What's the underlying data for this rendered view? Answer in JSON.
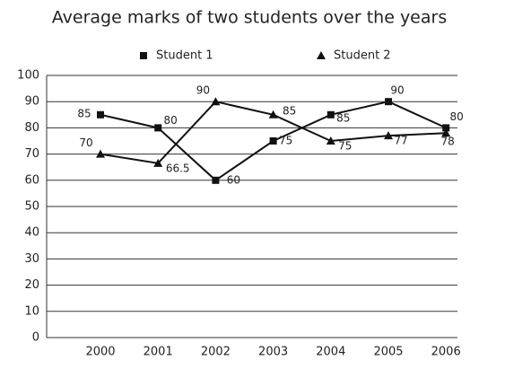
{
  "chart_data": {
    "type": "line",
    "title": "Average marks of two students over the years",
    "categories": [
      "2000",
      "2001",
      "2002",
      "2003",
      "2004",
      "2005",
      "2006"
    ],
    "series": [
      {
        "name": "Student 1",
        "color": "#111111",
        "marker": "square",
        "values": [
          85,
          80,
          60,
          75,
          85,
          90,
          80
        ]
      },
      {
        "name": "Student 2",
        "color": "#111111",
        "marker": "triangle",
        "values": [
          70,
          66.5,
          90,
          85,
          75,
          77,
          78
        ]
      }
    ],
    "ylim": [
      0,
      100
    ],
    "yticks": [
      0,
      10,
      20,
      30,
      40,
      50,
      60,
      70,
      80,
      90,
      100
    ],
    "grid": true
  }
}
